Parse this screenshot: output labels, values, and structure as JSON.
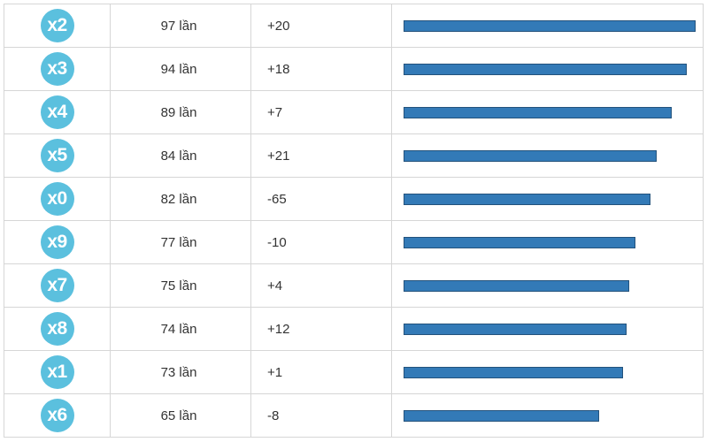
{
  "unit": "lần",
  "colors": {
    "badge": "#5bc0de",
    "bar": "#337ab7"
  },
  "rows": [
    {
      "label": "x2",
      "count": 97,
      "count_text": "97 lần",
      "change": "+20"
    },
    {
      "label": "x3",
      "count": 94,
      "count_text": "94 lần",
      "change": "+18"
    },
    {
      "label": "x4",
      "count": 89,
      "count_text": "89 lần",
      "change": "+7"
    },
    {
      "label": "x5",
      "count": 84,
      "count_text": "84 lần",
      "change": "+21"
    },
    {
      "label": "x0",
      "count": 82,
      "count_text": "82 lần",
      "change": "-65"
    },
    {
      "label": "x9",
      "count": 77,
      "count_text": "77 lần",
      "change": "-10"
    },
    {
      "label": "x7",
      "count": 75,
      "count_text": "75 lần",
      "change": "+4"
    },
    {
      "label": "x8",
      "count": 74,
      "count_text": "74 lần",
      "change": "+12"
    },
    {
      "label": "x1",
      "count": 73,
      "count_text": "73 lần",
      "change": "+1"
    },
    {
      "label": "x6",
      "count": 65,
      "count_text": "65 lần",
      "change": "-8"
    }
  ]
}
